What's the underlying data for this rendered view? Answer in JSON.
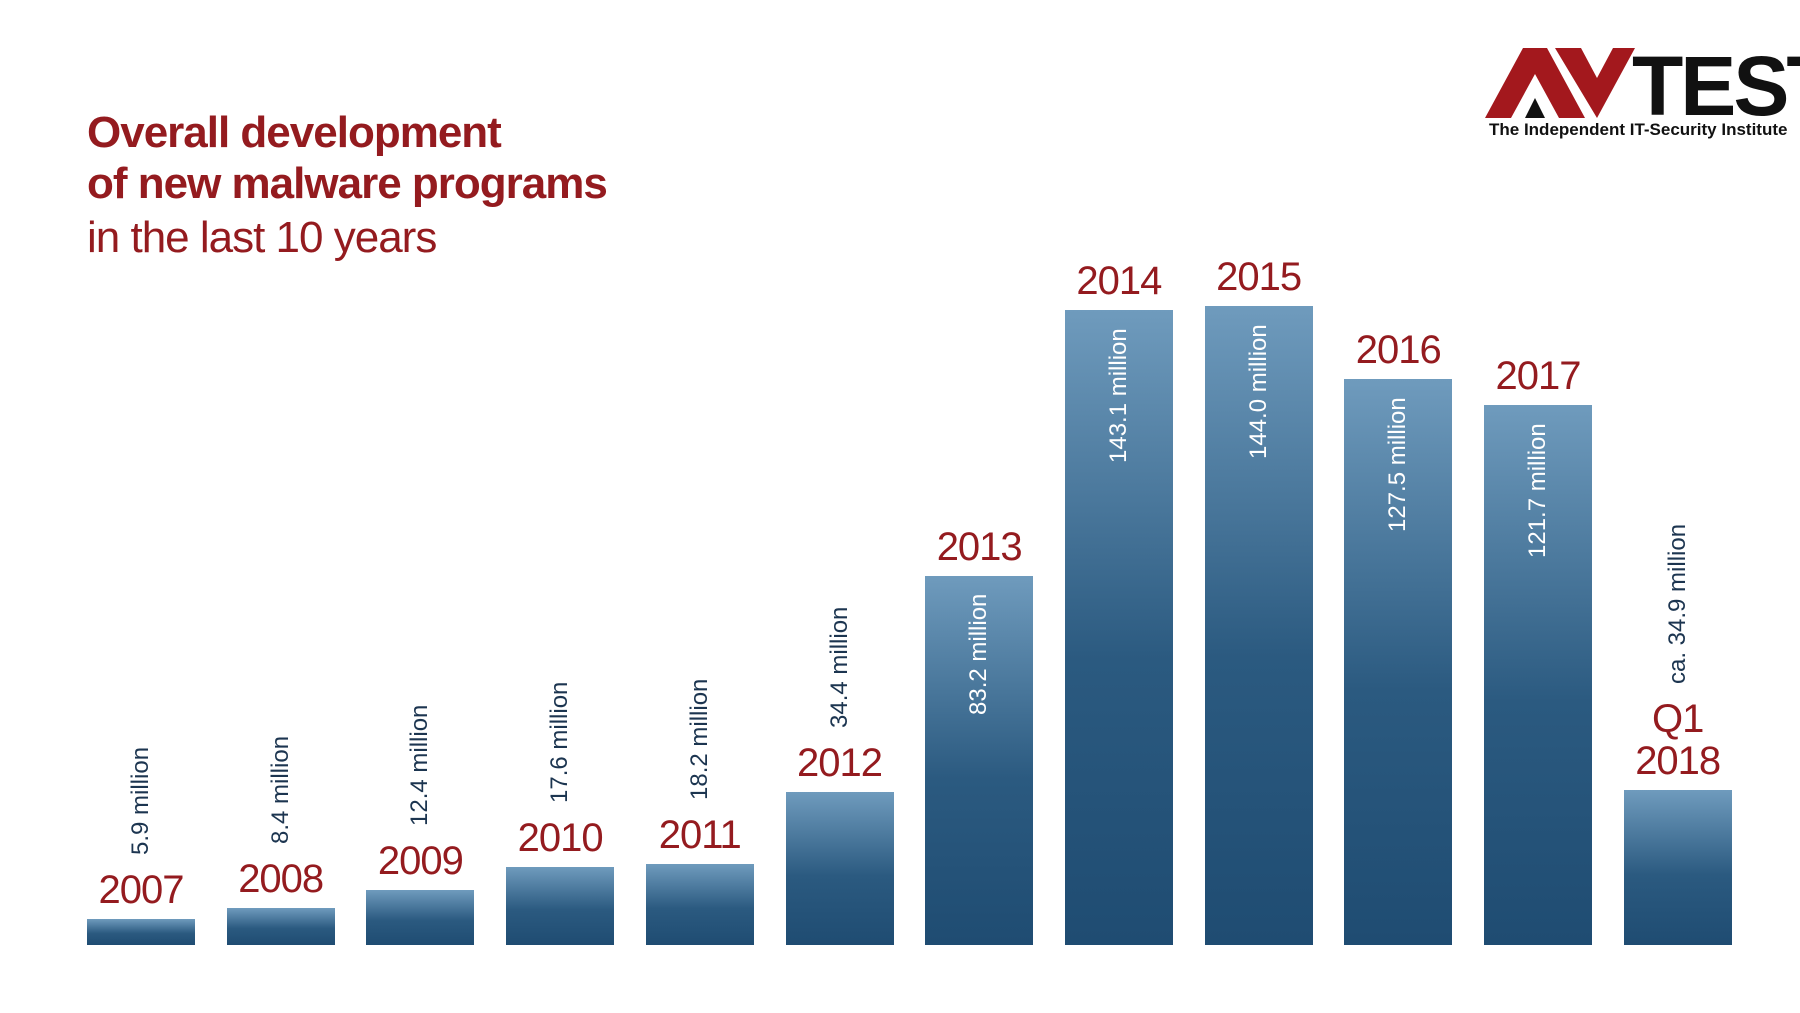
{
  "chart_data": {
    "type": "bar",
    "title": "Overall development\nof new malware programs",
    "subtitle": "in the last 10 years",
    "categories": [
      "2007",
      "2008",
      "2009",
      "2010",
      "2011",
      "2012",
      "2013",
      "2014",
      "2015",
      "2016",
      "2017",
      "Q1\n2018"
    ],
    "values": [
      5.9,
      8.4,
      12.4,
      17.6,
      18.2,
      34.4,
      83.2,
      143.1,
      144.0,
      127.5,
      121.7,
      34.9
    ],
    "value_labels": [
      "5.9 million",
      "8.4 million",
      "12.4 million",
      "17.6 million",
      "18.2 million",
      "34.4 million",
      "83.2 million",
      "143.1 million",
      "144.0 million",
      "127.5 million",
      "121.7 million",
      "ca. 34.9 million"
    ],
    "color": "#2b5a80"
  },
  "logo": {
    "text": "TEST",
    "tagline": "The Independent IT-Security Institute"
  }
}
